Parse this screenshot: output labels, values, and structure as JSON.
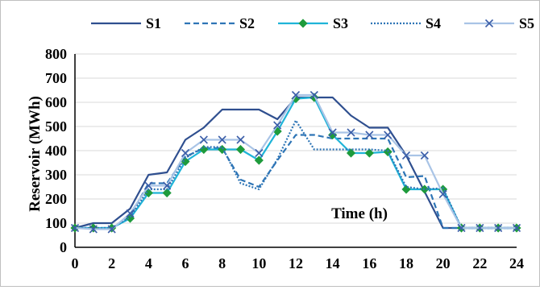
{
  "chart_data": {
    "type": "line",
    "xlabel": "Time (h)",
    "ylabel": "Reservoir (MWh)",
    "x": [
      0,
      1,
      2,
      3,
      4,
      5,
      6,
      7,
      8,
      9,
      10,
      11,
      12,
      13,
      14,
      15,
      16,
      17,
      18,
      19,
      20,
      21,
      22,
      23,
      24
    ],
    "xticks": [
      "0",
      "2",
      "4",
      "6",
      "8",
      "10",
      "12",
      "14",
      "16",
      "18",
      "20",
      "22",
      "24"
    ],
    "yticks": [
      "0",
      "100",
      "200",
      "300",
      "400",
      "500",
      "600",
      "700",
      "800"
    ],
    "xlim": [
      0,
      24
    ],
    "ylim": [
      0,
      800
    ],
    "grid": "horizontal",
    "legend_position": "top",
    "series": [
      {
        "name": "S1",
        "color": "#2f4f8f",
        "dash": "solid",
        "marker": "none",
        "values": [
          80,
          100,
          100,
          160,
          300,
          310,
          445,
          495,
          570,
          570,
          570,
          530,
          620,
          620,
          620,
          545,
          495,
          495,
          380,
          230,
          80,
          80,
          80,
          80,
          80
        ]
      },
      {
        "name": "S2",
        "color": "#2e75b6",
        "dash": "dashed",
        "marker": "none",
        "values": [
          80,
          80,
          80,
          130,
          265,
          265,
          375,
          410,
          410,
          280,
          250,
          360,
          465,
          465,
          450,
          450,
          450,
          450,
          290,
          295,
          80,
          80,
          80,
          80,
          80
        ]
      },
      {
        "name": "S3",
        "color": "#1fb4d8",
        "dash": "solid",
        "marker": "diamond",
        "values": [
          80,
          80,
          80,
          120,
          225,
          225,
          355,
          405,
          405,
          405,
          360,
          480,
          615,
          620,
          465,
          390,
          390,
          395,
          240,
          240,
          240,
          80,
          80,
          80,
          80
        ]
      },
      {
        "name": "S4",
        "color": "#2e75b6",
        "dash": "dotted",
        "marker": "none",
        "values": [
          80,
          80,
          80,
          125,
          240,
          240,
          370,
          415,
          415,
          265,
          240,
          365,
          525,
          405,
          405,
          405,
          405,
          400,
          250,
          240,
          245,
          80,
          80,
          80,
          80
        ]
      },
      {
        "name": "S5",
        "color": "#a9c4e6",
        "dash": "solid",
        "marker": "x",
        "values": [
          80,
          75,
          75,
          140,
          255,
          255,
          390,
          445,
          445,
          445,
          390,
          505,
          630,
          630,
          475,
          475,
          465,
          465,
          380,
          380,
          220,
          80,
          80,
          80,
          80
        ]
      }
    ]
  }
}
